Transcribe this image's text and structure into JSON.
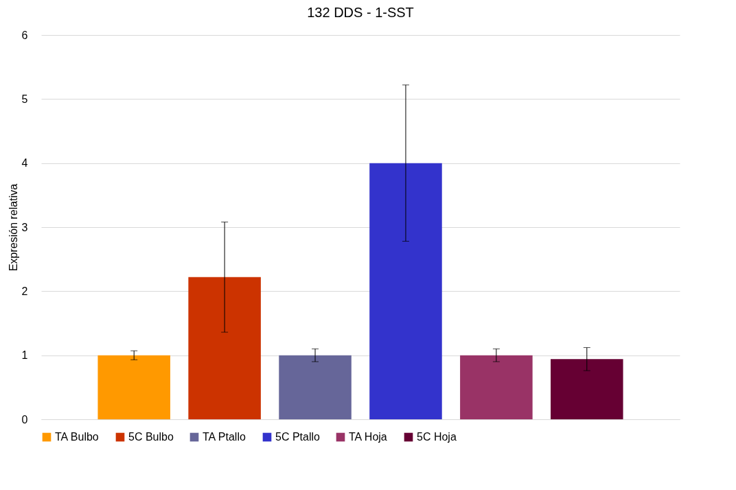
{
  "chart_data": {
    "type": "bar",
    "title": "132 DDS - 1-SST",
    "ylabel": "Expresión relativa",
    "categories": [
      null,
      null,
      null,
      null,
      null,
      null
    ],
    "series": [
      {
        "name": "TA Bulbo",
        "color": "#ff9900",
        "values": [
          1.0,
          null,
          null,
          null,
          null,
          null
        ],
        "errors": [
          0.07,
          null,
          null,
          null,
          null,
          null
        ]
      },
      {
        "name": "5C Bulbo",
        "color": "#cc3300",
        "values": [
          null,
          2.22,
          null,
          null,
          null,
          null
        ],
        "errors": [
          null,
          0.86,
          null,
          null,
          null,
          null
        ]
      },
      {
        "name": "TA Ptallo",
        "color": "#666699",
        "values": [
          null,
          null,
          1.0,
          null,
          null,
          null
        ],
        "errors": [
          null,
          null,
          0.1,
          null,
          null,
          null
        ]
      },
      {
        "name": "5C Ptallo",
        "color": "#3333cc",
        "values": [
          null,
          null,
          null,
          4.0,
          null,
          null
        ],
        "errors": [
          null,
          null,
          null,
          1.22,
          null,
          null
        ]
      },
      {
        "name": "TA Hoja",
        "color": "#993366",
        "values": [
          null,
          null,
          null,
          null,
          1.0,
          null
        ],
        "errors": [
          null,
          null,
          null,
          null,
          0.1,
          null
        ]
      },
      {
        "name": "5C Hoja",
        "color": "#660033",
        "values": [
          null,
          null,
          null,
          null,
          null,
          0.94
        ],
        "errors": [
          null,
          null,
          null,
          null,
          null,
          0.18
        ]
      }
    ],
    "ylim": [
      0,
      6
    ],
    "yticks": [
      0,
      1,
      2,
      3,
      4,
      5,
      6
    ],
    "grid": "y",
    "legend": "bottom"
  }
}
